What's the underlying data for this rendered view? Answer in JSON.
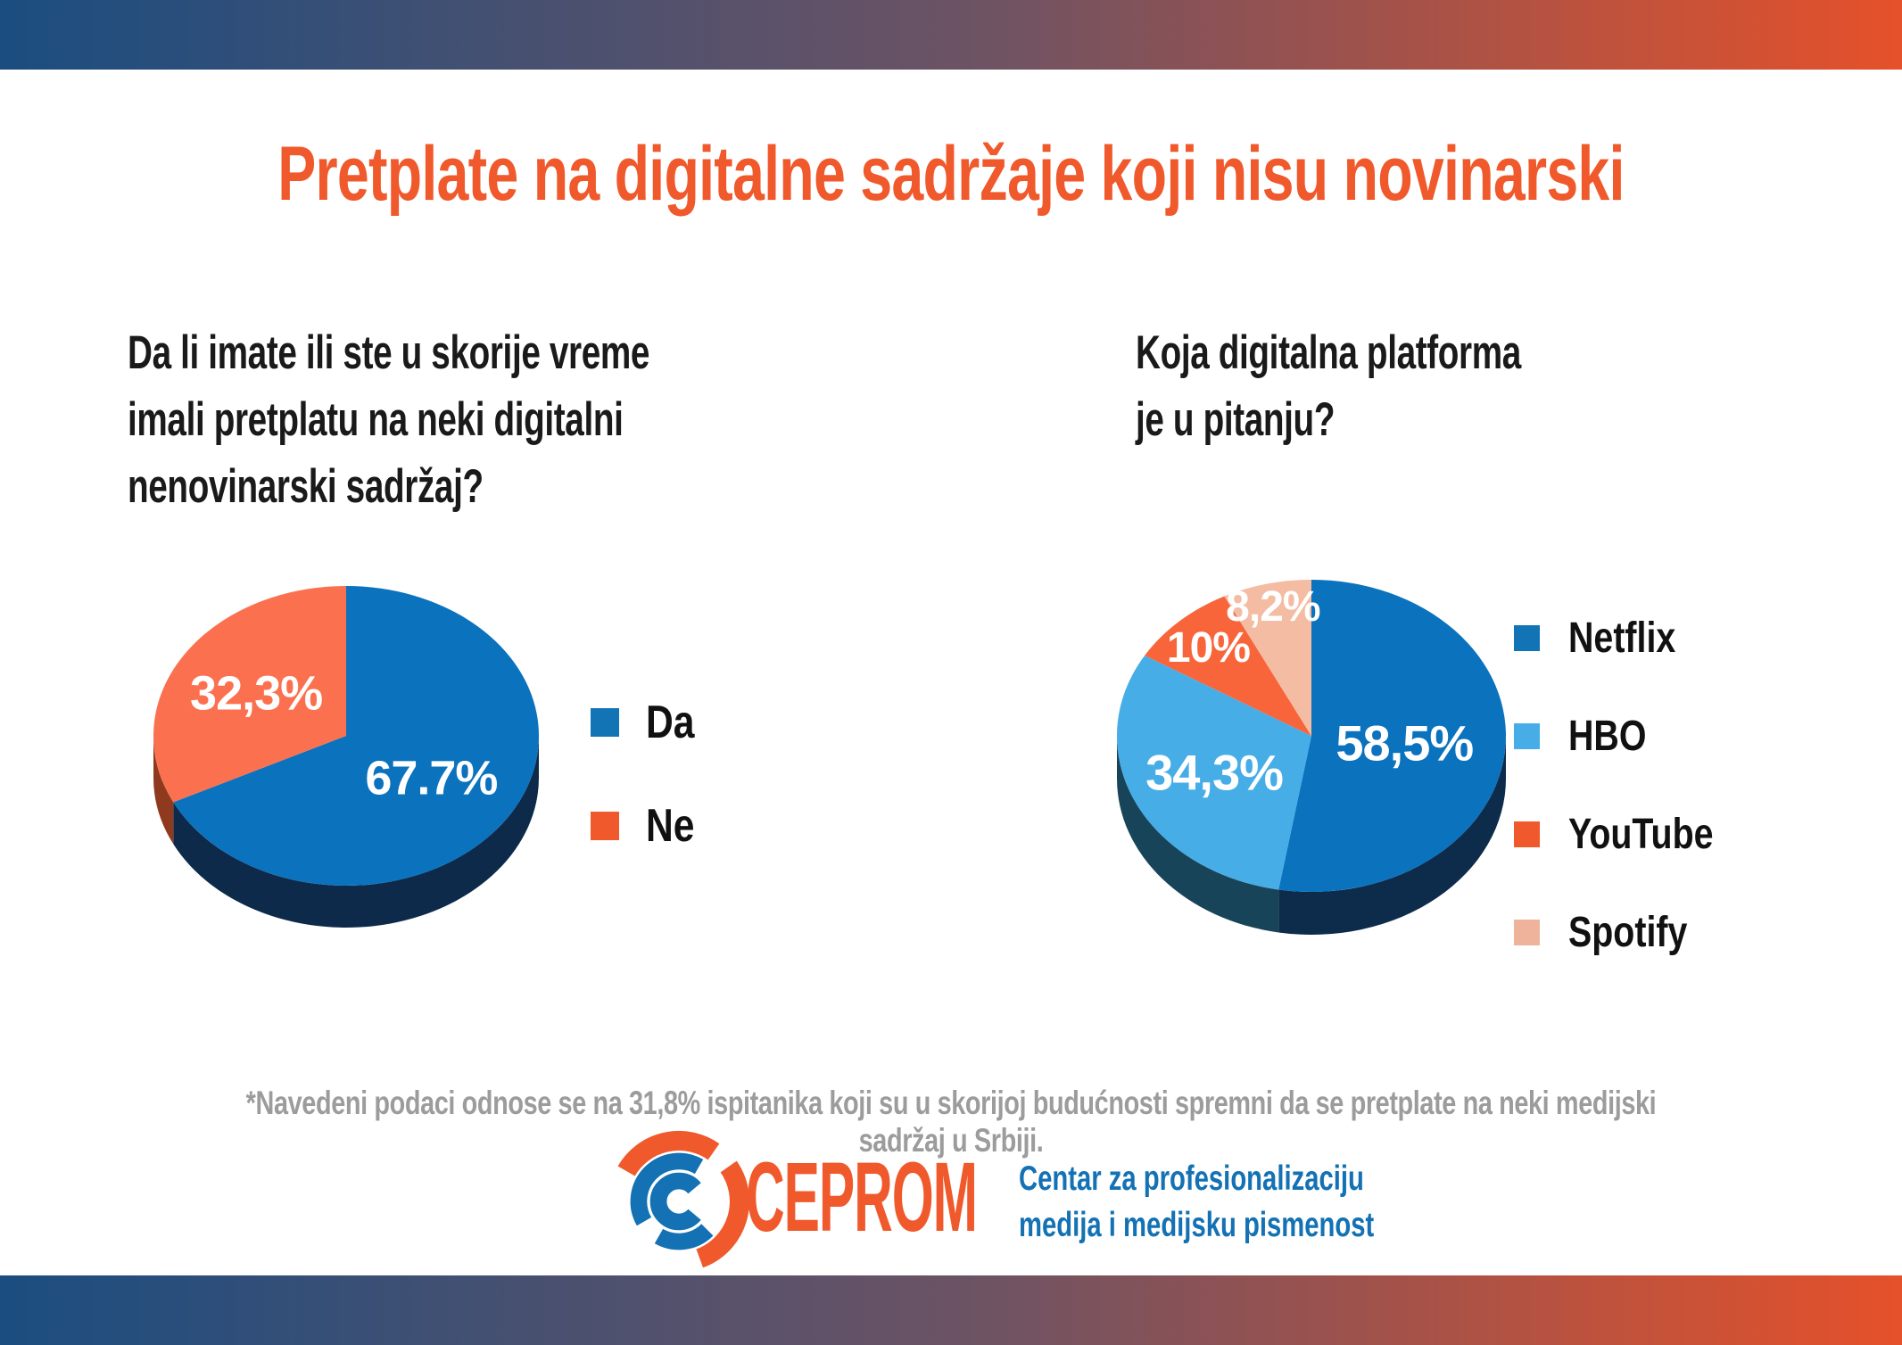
{
  "title": "Pretplate na digitalne sadržaje koji nisu novinarski",
  "questions": {
    "left": "Da li imate ili ste u skorije vreme\nimali pretplatu na neki digitalni\nnenovinarski sadržaj?",
    "right": "Koja digitalna platforma\nje u pitanju?"
  },
  "footnote": "*Navedeni podaci odnose se na 31,8% ispitanika koji su u skorijoj budućnosti spremni da se pretplate na neki medijski sadržaj u Srbiji.",
  "logo": {
    "wordmark": "CEPROM",
    "tagline": "Centar za profesionalizaciju\nmedija i medijsku pismenost"
  },
  "colors": {
    "accent_orange": "#F0592B",
    "logo_blue": "#1371B4",
    "gradient_left_blue": "#1B4D80",
    "gradient_right_orange": "#E5512A"
  },
  "chart_data": [
    {
      "id": "pie-left",
      "type": "pie",
      "question": "Da li imate ili ste u skorije vreme imali pretplatu na neki digitalni nenovinarski sadržaj?",
      "start_angle_deg": 0,
      "direction": "clockwise",
      "style": "3d-pie",
      "legend_position": "right",
      "slices": [
        {
          "label": "Da",
          "value": 67.7,
          "display": "67.7%",
          "color": "#0B72BE",
          "dark": "#0D2A4A",
          "legend_color": "#1273B5",
          "label_r": 0.52,
          "label_size": 54
        },
        {
          "label": "Ne",
          "value": 32.3,
          "display": "32,3%",
          "color": "#FB7150",
          "dark": "#8F3A1E",
          "legend_color": "#F0592B",
          "label_r": 0.55,
          "label_size": 54
        }
      ]
    },
    {
      "id": "pie-right",
      "type": "pie",
      "question": "Koja digitalna platforma je u pitanju?",
      "start_angle_deg": 0,
      "direction": "clockwise",
      "style": "3d-pie",
      "legend_position": "right",
      "note": "values sum to 111 (multiple answers possible); slice angles are proportional to value/111",
      "slices": [
        {
          "label": "Netflix",
          "value": 58.5,
          "display": "58,5%",
          "color": "#0B72BE",
          "dark": "#0D2B4B",
          "legend_color": "#1273B5",
          "label_r": 0.48,
          "label_size": 56
        },
        {
          "label": "HBO",
          "value": 34.3,
          "display": "34,3%",
          "color": "#47ADE6",
          "dark": "#184459",
          "legend_color": "#47ADE6",
          "label_r": 0.55,
          "label_size": 56
        },
        {
          "label": "YouTube",
          "value": 10.0,
          "display": "10%",
          "color": "#F8653B",
          "dark": "#8F3A1E",
          "legend_color": "#F0592B",
          "label_r": 0.78,
          "label_size": 48
        },
        {
          "label": "Spotify",
          "value": 8.2,
          "display": "8,2%",
          "color": "#F4BCA3",
          "dark": "#8F6A55",
          "legend_color": "#EFB39C",
          "label_r": 0.86,
          "label_size": 48
        }
      ]
    }
  ]
}
